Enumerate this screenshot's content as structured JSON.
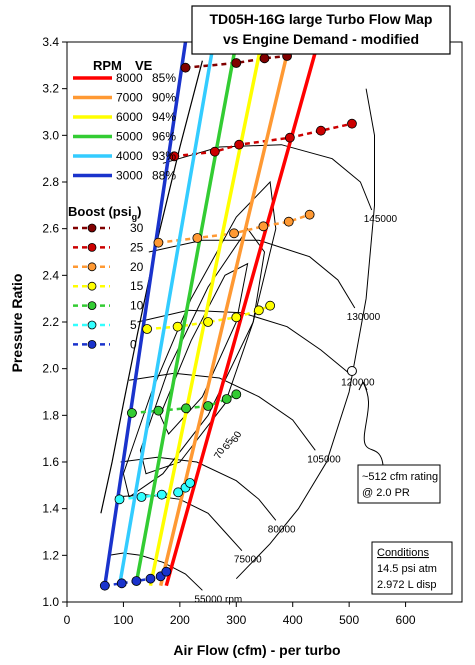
{
  "chart_data": {
    "type": "line",
    "title_lines": [
      "TD05H-16G large Turbo Flow Map",
      "vs Engine Demand - modified"
    ],
    "xlabel": "Air Flow (cfm) - per turbo",
    "ylabel": "Pressure Ratio",
    "xlim": [
      0,
      700
    ],
    "ylim": [
      1.0,
      3.4
    ],
    "x_ticks": [
      "0",
      "100",
      "200",
      "300",
      "400",
      "500",
      "600"
    ],
    "y_ticks": [
      "1.0",
      "1.2",
      "1.4",
      "1.6",
      "1.8",
      "2.0",
      "2.2",
      "2.4",
      "2.6",
      "2.8",
      "3.0",
      "3.2",
      "3.4"
    ],
    "grid": false,
    "legend_rpm": {
      "header_rpm": "RPM",
      "header_ve": "VE",
      "entries": [
        {
          "rpm": "8000",
          "ve": "85%",
          "color": "#ff0000"
        },
        {
          "rpm": "7000",
          "ve": "90%",
          "color": "#ff9933"
        },
        {
          "rpm": "6000",
          "ve": "94%",
          "color": "#ffff00"
        },
        {
          "rpm": "5000",
          "ve": "96%",
          "color": "#33cc33"
        },
        {
          "rpm": "4000",
          "ve": "93%",
          "color": "#33ccff"
        },
        {
          "rpm": "3000",
          "ve": "88%",
          "color": "#1a33cc"
        }
      ]
    },
    "legend_boost": {
      "header": "Boost (psi",
      "header_sub": "g",
      "header_end": ")",
      "entries": [
        {
          "label": "30",
          "color": "#800000"
        },
        {
          "label": "25",
          "color": "#cc0000"
        },
        {
          "label": "20",
          "color": "#ff9933"
        },
        {
          "label": "15",
          "color": "#ffff00"
        },
        {
          "label": "10",
          "color": "#33cc33"
        },
        {
          "label": "5",
          "color": "#33ffff"
        },
        {
          "label": "0",
          "color": "#1a33cc"
        }
      ]
    },
    "rpm_series": [
      {
        "name": "3000",
        "color": "#1a33cc",
        "x": [
          67,
          210
        ],
        "y": [
          1.07,
          3.4
        ]
      },
      {
        "name": "4000",
        "color": "#33ccff",
        "x": [
          93,
          260
        ],
        "y": [
          1.07,
          3.4
        ]
      },
      {
        "name": "5000",
        "color": "#33cc33",
        "x": [
          122,
          300
        ],
        "y": [
          1.07,
          3.4
        ]
      },
      {
        "name": "6000",
        "color": "#ffff00",
        "x": [
          148,
          345
        ],
        "y": [
          1.07,
          3.4
        ]
      },
      {
        "name": "7000",
        "color": "#ff9933",
        "x": [
          166,
          395
        ],
        "y": [
          1.07,
          3.4
        ]
      },
      {
        "name": "8000",
        "color": "#ff0000",
        "x": [
          176,
          445
        ],
        "y": [
          1.07,
          3.4
        ]
      }
    ],
    "boost_series": [
      {
        "label": "30",
        "color": "#800000",
        "x": [
          210,
          300,
          350,
          390
        ],
        "y": [
          3.29,
          3.31,
          3.33,
          3.34
        ]
      },
      {
        "label": "25",
        "color": "#cc0000",
        "x": [
          190,
          262,
          305,
          395,
          450,
          505
        ],
        "y": [
          2.91,
          2.93,
          2.96,
          2.99,
          3.02,
          3.05
        ]
      },
      {
        "label": "20",
        "color": "#ff9933",
        "x": [
          162,
          231,
          296,
          348,
          393,
          430
        ],
        "y": [
          2.54,
          2.56,
          2.58,
          2.61,
          2.63,
          2.66
        ]
      },
      {
        "label": "15",
        "color": "#ffff00",
        "x": [
          142,
          196,
          250,
          300,
          340,
          360
        ],
        "y": [
          2.17,
          2.18,
          2.2,
          2.22,
          2.25,
          2.27
        ]
      },
      {
        "label": "10",
        "color": "#33cc33",
        "x": [
          115,
          162,
          211,
          250,
          283,
          300
        ],
        "y": [
          1.81,
          1.82,
          1.83,
          1.84,
          1.87,
          1.89
        ]
      },
      {
        "label": "5",
        "color": "#33ffff",
        "x": [
          93,
          132,
          168,
          197,
          210,
          218
        ],
        "y": [
          1.44,
          1.45,
          1.46,
          1.47,
          1.49,
          1.51
        ]
      },
      {
        "label": "0",
        "color": "#1a33cc",
        "x": [
          67,
          97,
          123,
          148,
          166,
          176
        ],
        "y": [
          1.07,
          1.08,
          1.09,
          1.1,
          1.11,
          1.13
        ]
      }
    ],
    "surge_line": {
      "x": [
        60,
        80,
        100,
        125,
        160,
        200,
        240
      ],
      "y": [
        1.38,
        1.6,
        1.85,
        2.15,
        2.55,
        2.95,
        3.32
      ]
    },
    "speed_lines": [
      {
        "label": "55000 rpm",
        "x": [
          75,
          100,
          130,
          170,
          210,
          240
        ],
        "y": [
          1.2,
          1.21,
          1.2,
          1.17,
          1.12,
          1.05
        ]
      },
      {
        "label": "75000",
        "x": [
          85,
          140,
          200,
          250,
          280,
          310
        ],
        "y": [
          1.45,
          1.46,
          1.44,
          1.38,
          1.3,
          1.22
        ]
      },
      {
        "label": "80000",
        "x": [
          95,
          160,
          230,
          300,
          340,
          370
        ],
        "y": [
          1.6,
          1.62,
          1.6,
          1.52,
          1.44,
          1.35
        ]
      },
      {
        "label": "105000",
        "x": [
          110,
          190,
          270,
          340,
          400,
          440
        ],
        "y": [
          1.95,
          1.98,
          1.96,
          1.88,
          1.78,
          1.65
        ]
      },
      {
        "label": "120000",
        "x": [
          125,
          215,
          310,
          390,
          450,
          500
        ],
        "y": [
          2.2,
          2.25,
          2.24,
          2.18,
          2.08,
          1.98
        ]
      },
      {
        "label": "130000",
        "x": [
          145,
          240,
          340,
          430,
          480,
          510
        ],
        "y": [
          2.5,
          2.55,
          2.55,
          2.48,
          2.38,
          2.26
        ]
      },
      {
        "label": "145000",
        "x": [
          170,
          270,
          380,
          470,
          520,
          540
        ],
        "y": [
          2.88,
          2.95,
          2.96,
          2.9,
          2.8,
          2.68
        ]
      }
    ],
    "eff_labels": [
      "60",
      "65",
      "70"
    ],
    "eff_islands": [
      {
        "x": [
          100,
          150,
          220,
          300,
          360,
          370,
          330,
          250,
          170,
          110
        ],
        "y": [
          1.55,
          1.9,
          2.3,
          2.65,
          2.8,
          2.6,
          2.2,
          1.8,
          1.55,
          1.45
        ]
      },
      {
        "x": [
          130,
          180,
          250,
          320,
          350,
          330,
          280,
          200,
          140
        ],
        "y": [
          1.65,
          2.0,
          2.35,
          2.6,
          2.5,
          2.2,
          1.85,
          1.6,
          1.55
        ]
      },
      {
        "x": [
          165,
          220,
          280,
          320,
          300,
          240,
          180
        ],
        "y": [
          1.8,
          2.12,
          2.4,
          2.45,
          2.2,
          1.88,
          1.72
        ]
      }
    ],
    "choke_line": {
      "x": [
        300,
        360,
        410,
        460,
        500,
        530,
        545,
        545,
        530
      ],
      "y": [
        1.1,
        1.25,
        1.4,
        1.6,
        1.9,
        2.3,
        2.7,
        3.0,
        3.2
      ]
    },
    "rating_point": {
      "x": 505,
      "y": 1.99
    },
    "annotation_rating": [
      "~512 cfm rating",
      "@ 2.0 PR"
    ],
    "conditions": [
      "Conditions",
      "14.5 psi atm",
      "2.972 L disp"
    ]
  }
}
